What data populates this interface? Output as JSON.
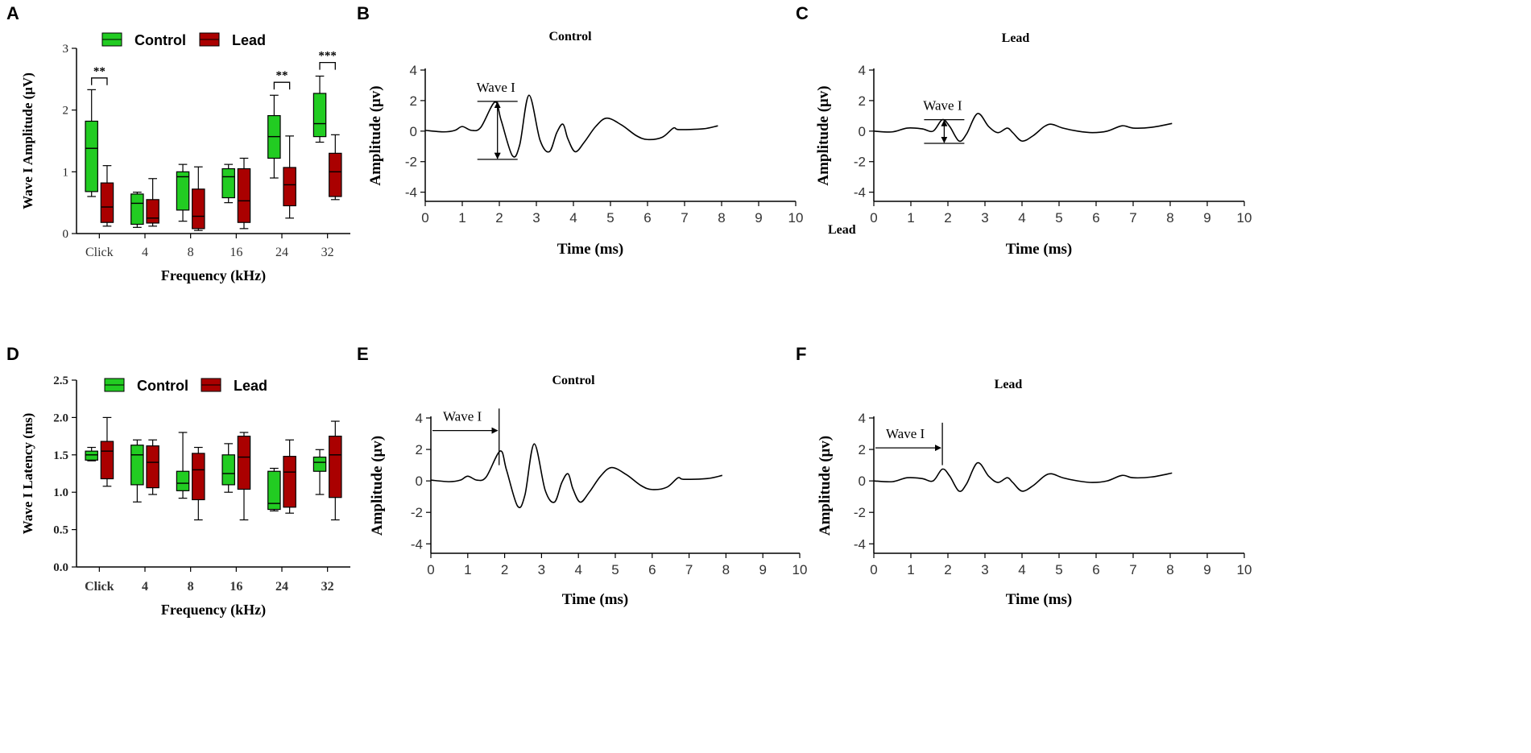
{
  "colors": {
    "control": "#22cc22",
    "lead": "#aa0000",
    "axis": "#000000",
    "trace": "#000000",
    "tick_text": "#333333"
  },
  "panels": [
    {
      "letter": "A"
    },
    {
      "letter": "B"
    },
    {
      "letter": "C"
    },
    {
      "letter": "D"
    },
    {
      "letter": "E"
    },
    {
      "letter": "F"
    }
  ],
  "stray_label": "Lead",
  "chart_data": [
    {
      "id": "A",
      "type": "box",
      "ylabel": "Wave I Amplitude (μV)",
      "xlabel": "Frequency (kHz)",
      "ylim": [
        0,
        3
      ],
      "yticks": [
        "0",
        "1",
        "2",
        "3"
      ],
      "categories": [
        "Click",
        "4",
        "8",
        "16",
        "24",
        "32"
      ],
      "legend": [
        "Control",
        "Lead"
      ],
      "series": [
        {
          "name": "Control",
          "boxes": [
            {
              "min": 0.6,
              "q1": 0.68,
              "median": 1.38,
              "q3": 1.82,
              "max": 2.33
            },
            {
              "min": 0.1,
              "q1": 0.15,
              "median": 0.49,
              "q3": 0.64,
              "max": 0.67
            },
            {
              "min": 0.2,
              "q1": 0.38,
              "median": 0.92,
              "q3": 1.0,
              "max": 1.12
            },
            {
              "min": 0.5,
              "q1": 0.58,
              "median": 0.92,
              "q3": 1.05,
              "max": 1.12
            },
            {
              "min": 0.9,
              "q1": 1.22,
              "median": 1.57,
              "q3": 1.91,
              "max": 2.24
            },
            {
              "min": 1.48,
              "q1": 1.57,
              "median": 1.78,
              "q3": 2.27,
              "max": 2.55
            }
          ]
        },
        {
          "name": "Lead",
          "boxes": [
            {
              "min": 0.12,
              "q1": 0.18,
              "median": 0.43,
              "q3": 0.82,
              "max": 1.1
            },
            {
              "min": 0.12,
              "q1": 0.17,
              "median": 0.25,
              "q3": 0.55,
              "max": 0.89
            },
            {
              "min": 0.05,
              "q1": 0.08,
              "median": 0.28,
              "q3": 0.72,
              "max": 1.08
            },
            {
              "min": 0.08,
              "q1": 0.18,
              "median": 0.53,
              "q3": 1.05,
              "max": 1.22
            },
            {
              "min": 0.25,
              "q1": 0.45,
              "median": 0.79,
              "q3": 1.07,
              "max": 1.58
            },
            {
              "min": 0.55,
              "q1": 0.6,
              "median": 1.0,
              "q3": 1.3,
              "max": 1.6
            }
          ]
        }
      ],
      "significance": [
        {
          "category_index": 0,
          "label": "**",
          "y": 2.52
        },
        {
          "category_index": 4,
          "label": "**",
          "y": 2.45
        },
        {
          "category_index": 5,
          "label": "***",
          "y": 2.77
        }
      ]
    },
    {
      "id": "B",
      "type": "line",
      "title": "Control",
      "xlabel": "Time (ms)",
      "ylabel": "Amplitude (μv)",
      "xlim": [
        0,
        10
      ],
      "ylim": [
        -4.6,
        4
      ],
      "xticks": [
        "0",
        "1",
        "2",
        "3",
        "4",
        "5",
        "6",
        "7",
        "8",
        "9",
        "10"
      ],
      "yticks": [
        "-4",
        "-2",
        "0",
        "2",
        "4"
      ],
      "keypoints": [
        [
          0,
          0.05
        ],
        [
          0.5,
          -0.05
        ],
        [
          0.8,
          0.05
        ],
        [
          1.0,
          0.3
        ],
        [
          1.25,
          0.05
        ],
        [
          1.5,
          0.25
        ],
        [
          1.88,
          1.9
        ],
        [
          2.05,
          0.7
        ],
        [
          2.35,
          -1.6
        ],
        [
          2.55,
          -0.9
        ],
        [
          2.8,
          2.35
        ],
        [
          3.1,
          -0.6
        ],
        [
          3.35,
          -1.35
        ],
        [
          3.55,
          -0.1
        ],
        [
          3.72,
          0.45
        ],
        [
          3.85,
          -0.5
        ],
        [
          4.05,
          -1.35
        ],
        [
          4.3,
          -0.7
        ],
        [
          4.6,
          0.3
        ],
        [
          4.9,
          0.85
        ],
        [
          5.3,
          0.4
        ],
        [
          5.7,
          -0.3
        ],
        [
          6.0,
          -0.55
        ],
        [
          6.4,
          -0.4
        ],
        [
          6.7,
          0.2
        ],
        [
          6.85,
          0.1
        ],
        [
          7.5,
          0.15
        ],
        [
          7.9,
          0.35
        ]
      ],
      "annotation": {
        "text": "Wave I",
        "type": "amplitude",
        "x": 1.95,
        "y_top": 1.95,
        "y_bottom": -1.85
      }
    },
    {
      "id": "C",
      "type": "line",
      "title": "Lead",
      "xlabel": "Time (ms)",
      "ylabel": "Amplitude (μv)",
      "xlim": [
        0,
        10
      ],
      "ylim": [
        -4.6,
        4
      ],
      "xticks": [
        "0",
        "1",
        "2",
        "3",
        "4",
        "5",
        "6",
        "7",
        "8",
        "9",
        "10"
      ],
      "yticks": [
        "-4",
        "-2",
        "0",
        "2",
        "4"
      ],
      "keypoints": [
        [
          0,
          0.0
        ],
        [
          0.5,
          -0.05
        ],
        [
          0.9,
          0.2
        ],
        [
          1.3,
          0.15
        ],
        [
          1.6,
          0.0
        ],
        [
          1.85,
          0.75
        ],
        [
          2.05,
          0.3
        ],
        [
          2.3,
          -0.65
        ],
        [
          2.5,
          -0.2
        ],
        [
          2.8,
          1.15
        ],
        [
          3.1,
          0.3
        ],
        [
          3.35,
          -0.1
        ],
        [
          3.6,
          0.2
        ],
        [
          3.75,
          -0.1
        ],
        [
          4.0,
          -0.65
        ],
        [
          4.3,
          -0.3
        ],
        [
          4.6,
          0.3
        ],
        [
          4.8,
          0.45
        ],
        [
          5.1,
          0.2
        ],
        [
          5.5,
          0.0
        ],
        [
          5.9,
          -0.1
        ],
        [
          6.3,
          0.0
        ],
        [
          6.7,
          0.35
        ],
        [
          7.0,
          0.2
        ],
        [
          7.5,
          0.25
        ],
        [
          8.05,
          0.5
        ]
      ],
      "annotation": {
        "text": "Wave I",
        "type": "amplitude",
        "x": 1.9,
        "y_top": 0.75,
        "y_bottom": -0.8
      }
    },
    {
      "id": "D",
      "type": "box",
      "ylabel": "Wave I Latency (ms)",
      "xlabel": "Frequency (kHz)",
      "ylim": [
        0,
        2.5
      ],
      "yticks": [
        "0.0",
        "0.5",
        "1.0",
        "1.5",
        "2.0",
        "2.5"
      ],
      "categories": [
        "Click",
        "4",
        "8",
        "16",
        "24",
        "32"
      ],
      "legend": [
        "Control",
        "Lead"
      ],
      "series": [
        {
          "name": "Control",
          "boxes": [
            {
              "min": 1.42,
              "q1": 1.43,
              "median": 1.5,
              "q3": 1.55,
              "max": 1.6
            },
            {
              "min": 0.87,
              "q1": 1.1,
              "median": 1.5,
              "q3": 1.63,
              "max": 1.7
            },
            {
              "min": 0.92,
              "q1": 1.02,
              "median": 1.12,
              "q3": 1.28,
              "max": 1.8
            },
            {
              "min": 1.0,
              "q1": 1.1,
              "median": 1.25,
              "q3": 1.5,
              "max": 1.65
            },
            {
              "min": 0.75,
              "q1": 0.77,
              "median": 0.85,
              "q3": 1.28,
              "max": 1.32
            },
            {
              "min": 0.97,
              "q1": 1.28,
              "median": 1.4,
              "q3": 1.47,
              "max": 1.57
            }
          ]
        },
        {
          "name": "Lead",
          "boxes": [
            {
              "min": 1.08,
              "q1": 1.18,
              "median": 1.55,
              "q3": 1.68,
              "max": 2.0
            },
            {
              "min": 0.97,
              "q1": 1.06,
              "median": 1.4,
              "q3": 1.62,
              "max": 1.7
            },
            {
              "min": 0.63,
              "q1": 0.9,
              "median": 1.3,
              "q3": 1.52,
              "max": 1.6
            },
            {
              "min": 0.63,
              "q1": 1.04,
              "median": 1.47,
              "q3": 1.75,
              "max": 1.8
            },
            {
              "min": 0.72,
              "q1": 0.8,
              "median": 1.27,
              "q3": 1.48,
              "max": 1.7
            },
            {
              "min": 0.63,
              "q1": 0.93,
              "median": 1.5,
              "q3": 1.75,
              "max": 1.95
            }
          ]
        }
      ],
      "significance": []
    },
    {
      "id": "E",
      "type": "line",
      "title": "Control",
      "xlabel": "Time (ms)",
      "ylabel": "Amplitude (μv)",
      "xlim": [
        0,
        10
      ],
      "ylim": [
        -4.6,
        4
      ],
      "xticks": [
        "0",
        "1",
        "2",
        "3",
        "4",
        "5",
        "6",
        "7",
        "8",
        "9",
        "10"
      ],
      "yticks": [
        "-4",
        "-2",
        "0",
        "2",
        "4"
      ],
      "keypoints": [
        [
          0,
          0.05
        ],
        [
          0.5,
          -0.05
        ],
        [
          0.8,
          0.05
        ],
        [
          1.0,
          0.3
        ],
        [
          1.25,
          0.05
        ],
        [
          1.5,
          0.25
        ],
        [
          1.88,
          1.9
        ],
        [
          2.05,
          0.7
        ],
        [
          2.35,
          -1.6
        ],
        [
          2.55,
          -0.9
        ],
        [
          2.8,
          2.35
        ],
        [
          3.1,
          -0.6
        ],
        [
          3.35,
          -1.35
        ],
        [
          3.55,
          -0.1
        ],
        [
          3.72,
          0.45
        ],
        [
          3.85,
          -0.5
        ],
        [
          4.05,
          -1.35
        ],
        [
          4.3,
          -0.7
        ],
        [
          4.6,
          0.3
        ],
        [
          4.9,
          0.85
        ],
        [
          5.3,
          0.4
        ],
        [
          5.7,
          -0.3
        ],
        [
          6.0,
          -0.55
        ],
        [
          6.4,
          -0.4
        ],
        [
          6.7,
          0.2
        ],
        [
          6.85,
          0.1
        ],
        [
          7.5,
          0.15
        ],
        [
          7.9,
          0.35
        ]
      ],
      "annotation": {
        "text": "Wave I",
        "type": "latency",
        "x": 1.85,
        "y_arrow": 3.2,
        "y_top": 4.6
      }
    },
    {
      "id": "F",
      "type": "line",
      "title": "Lead",
      "xlabel": "Time (ms)",
      "ylabel": "Amplitude (μv)",
      "xlim": [
        0,
        10
      ],
      "ylim": [
        -4.6,
        4
      ],
      "xticks": [
        "0",
        "1",
        "2",
        "3",
        "4",
        "5",
        "6",
        "7",
        "8",
        "9",
        "10"
      ],
      "yticks": [
        "-4",
        "-2",
        "0",
        "2",
        "4"
      ],
      "keypoints": [
        [
          0,
          0.0
        ],
        [
          0.5,
          -0.05
        ],
        [
          0.9,
          0.2
        ],
        [
          1.3,
          0.15
        ],
        [
          1.6,
          0.0
        ],
        [
          1.85,
          0.75
        ],
        [
          2.05,
          0.3
        ],
        [
          2.3,
          -0.65
        ],
        [
          2.5,
          -0.2
        ],
        [
          2.8,
          1.15
        ],
        [
          3.1,
          0.3
        ],
        [
          3.35,
          -0.1
        ],
        [
          3.6,
          0.2
        ],
        [
          3.75,
          -0.1
        ],
        [
          4.0,
          -0.65
        ],
        [
          4.3,
          -0.3
        ],
        [
          4.6,
          0.3
        ],
        [
          4.8,
          0.45
        ],
        [
          5.1,
          0.2
        ],
        [
          5.5,
          0.0
        ],
        [
          5.9,
          -0.1
        ],
        [
          6.3,
          0.0
        ],
        [
          6.7,
          0.35
        ],
        [
          7.0,
          0.2
        ],
        [
          7.5,
          0.25
        ],
        [
          8.05,
          0.5
        ]
      ],
      "annotation": {
        "text": "Wave I",
        "type": "latency",
        "x": 1.85,
        "y_arrow": 2.1,
        "y_top": 3.7
      }
    }
  ]
}
